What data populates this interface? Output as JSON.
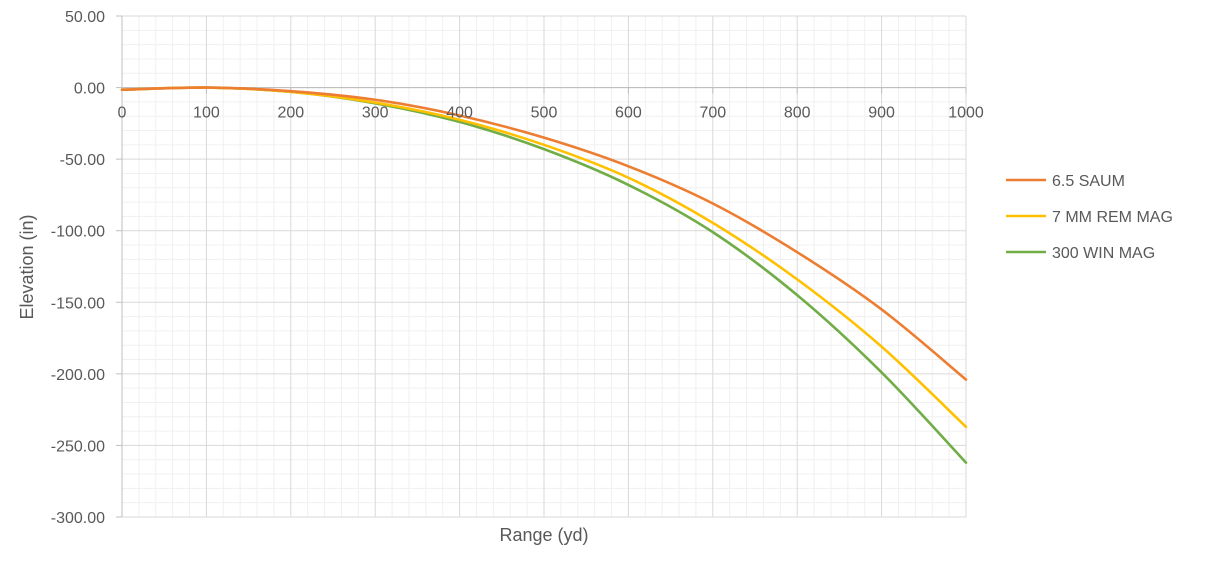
{
  "chart_data": {
    "type": "line",
    "title": "",
    "xlabel": "Range (yd)",
    "ylabel": "Elevation (in)",
    "xlim": [
      0,
      1000
    ],
    "ylim": [
      -300,
      50
    ],
    "x_ticks": [
      0,
      100,
      200,
      300,
      400,
      500,
      600,
      700,
      800,
      900,
      1000
    ],
    "x_tick_labels": [
      "0",
      "100",
      "200",
      "300",
      "400",
      "500",
      "600",
      "700",
      "800",
      "900",
      "1000"
    ],
    "y_ticks": [
      50,
      0,
      -50,
      -100,
      -150,
      -200,
      -250,
      -300
    ],
    "y_tick_labels": [
      "50.00",
      "0.00",
      "-50.00",
      "-100.00",
      "-150.00",
      "-200.00",
      "-250.00",
      "-300.00"
    ],
    "grid": true,
    "legend_position": "right",
    "x": [
      0,
      100,
      200,
      300,
      400,
      500,
      600,
      700,
      800,
      900,
      1000
    ],
    "series": [
      {
        "name": "6.5 SAUM",
        "color": "#ED7D31",
        "values": [
          -1.5,
          0.0,
          -2.5,
          -8.5,
          -19.5,
          -35.0,
          -55.0,
          -81.0,
          -115.0,
          -155.0,
          -204.0
        ]
      },
      {
        "name": "7 MM REM MAG",
        "color": "#FFC000",
        "values": [
          -1.5,
          0.0,
          -3.0,
          -10.5,
          -22.5,
          -40.0,
          -63.0,
          -94.5,
          -134.0,
          -181.0,
          -237.0
        ]
      },
      {
        "name": "300 WIN MAG",
        "color": "#70AD47",
        "values": [
          -1.5,
          0.0,
          -3.0,
          -11.0,
          -24.0,
          -43.0,
          -68.0,
          -101.0,
          -145.0,
          -199.0,
          -262.0
        ]
      }
    ]
  }
}
